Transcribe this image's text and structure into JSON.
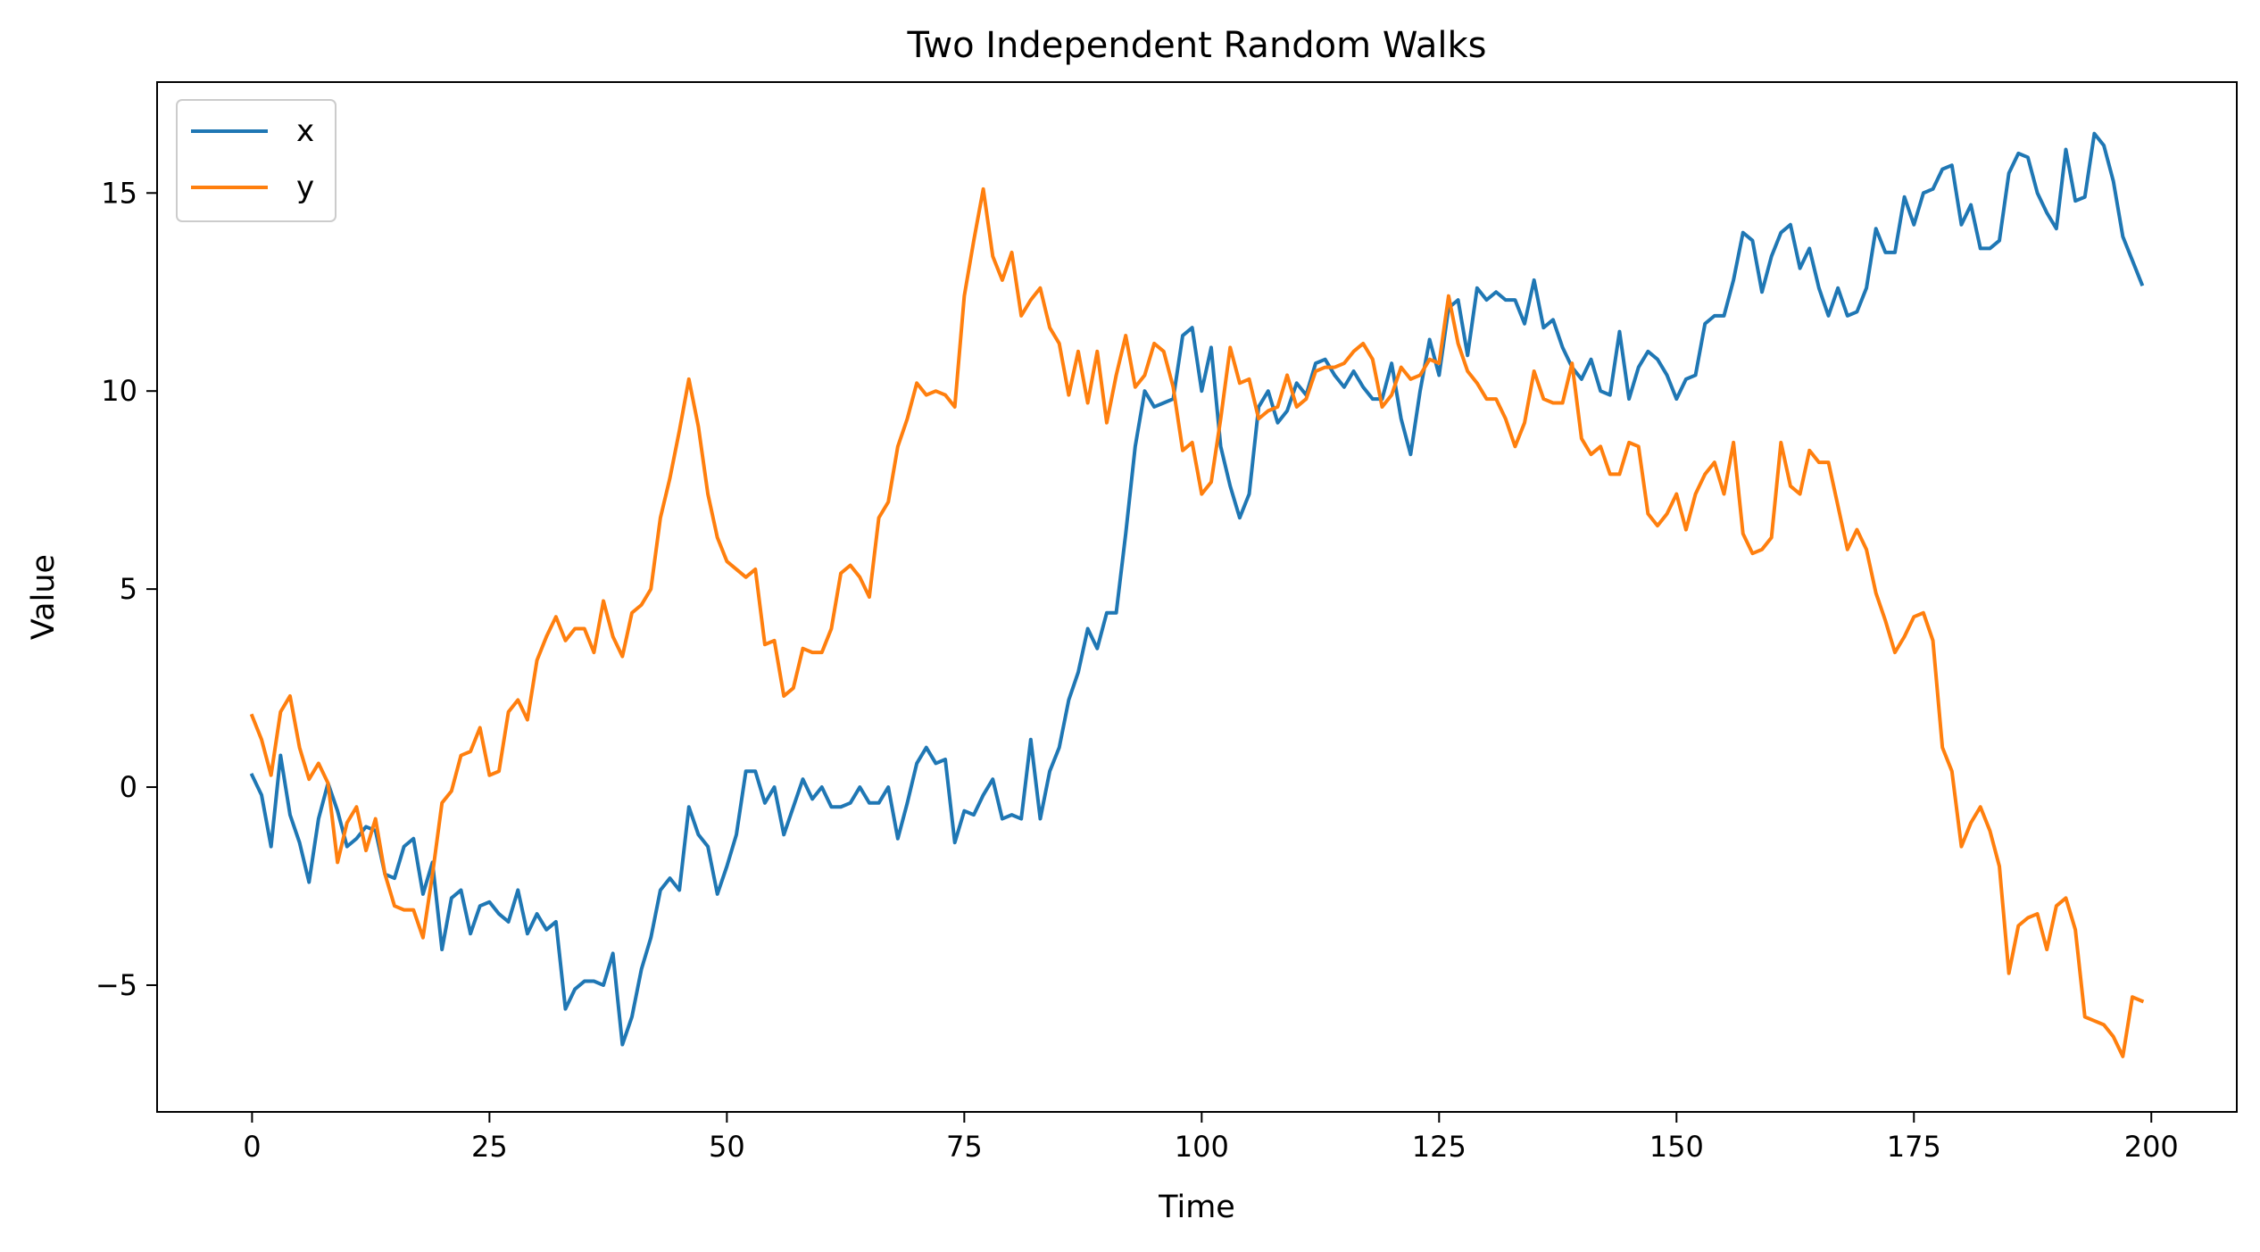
{
  "chart_data": {
    "type": "line",
    "title": "Two Independent Random Walks",
    "xlabel": "Time",
    "ylabel": "Value",
    "xlim": [
      -10,
      209
    ],
    "ylim": [
      -8.2,
      17.8
    ],
    "xticks": [
      0,
      25,
      50,
      75,
      100,
      125,
      150,
      175,
      200
    ],
    "yticks": [
      -5,
      0,
      5,
      10,
      15
    ],
    "ytick_labels": [
      "−5",
      "0",
      "5",
      "10",
      "15"
    ],
    "grid": false,
    "legend": "upper left",
    "series": [
      {
        "name": "x",
        "color": "#1f77b4",
        "values": [
          0.3,
          -0.2,
          -1.5,
          0.8,
          -0.7,
          -1.4,
          -2.4,
          -0.8,
          0.1,
          -0.6,
          -1.5,
          -1.3,
          -1.0,
          -1.1,
          -2.2,
          -2.3,
          -1.5,
          -1.3,
          -2.7,
          -1.9,
          -4.1,
          -2.8,
          -2.6,
          -3.7,
          -3.0,
          -2.9,
          -3.2,
          -3.4,
          -2.6,
          -3.7,
          -3.2,
          -3.6,
          -3.4,
          -5.6,
          -5.1,
          -4.9,
          -4.9,
          -5.0,
          -4.2,
          -6.5,
          -5.8,
          -4.6,
          -3.8,
          -2.6,
          -2.3,
          -2.6,
          -0.5,
          -1.2,
          -1.5,
          -2.7,
          -2.0,
          -1.2,
          0.4,
          0.4,
          -0.4,
          0.0,
          -1.2,
          -0.5,
          0.2,
          -0.3,
          0.0,
          -0.5,
          -0.5,
          -0.4,
          0.0,
          -0.4,
          -0.4,
          0.0,
          -1.3,
          -0.4,
          0.6,
          1.0,
          0.6,
          0.7,
          -1.4,
          -0.6,
          -0.7,
          -0.2,
          0.2,
          -0.8,
          -0.7,
          -0.8,
          1.2,
          -0.8,
          0.4,
          1.0,
          2.2,
          2.9,
          4.0,
          3.5,
          4.4,
          4.4,
          6.4,
          8.6,
          10.0,
          9.6,
          9.7,
          9.8,
          11.4,
          11.6,
          10.0,
          11.1,
          8.6,
          7.6,
          6.8,
          7.4,
          9.6,
          10.0,
          9.2,
          9.5,
          10.2,
          9.9,
          10.7,
          10.8,
          10.4,
          10.1,
          10.5,
          10.1,
          9.8,
          9.8,
          10.7,
          9.3,
          8.4,
          10.0,
          11.3,
          10.4,
          12.1,
          12.3,
          10.9,
          12.6,
          12.3,
          12.5,
          12.3,
          12.3,
          11.7,
          12.8,
          11.6,
          11.8,
          11.1,
          10.6,
          10.3,
          10.8,
          10.0,
          9.9,
          11.5,
          9.8,
          10.6,
          11.0,
          10.8,
          10.4,
          9.8,
          10.3,
          10.4,
          11.7,
          11.9,
          11.9,
          12.8,
          14.0,
          13.8,
          12.5,
          13.4,
          14.0,
          14.2,
          13.1,
          13.6,
          12.6,
          11.9,
          12.6,
          11.9,
          12.0,
          12.6,
          14.1,
          13.5,
          13.5,
          14.9,
          14.2,
          15.0,
          15.1,
          15.6,
          15.7,
          14.2,
          14.7,
          13.6,
          13.6,
          13.8,
          15.5,
          16.0,
          15.9,
          15.0,
          14.5,
          14.1,
          16.1,
          14.8,
          14.9,
          16.5,
          16.2,
          15.3,
          13.9,
          13.3,
          12.7
        ]
      },
      {
        "name": "y",
        "color": "#ff7f0e",
        "values": [
          1.8,
          1.2,
          0.3,
          1.9,
          2.3,
          1.0,
          0.2,
          0.6,
          0.1,
          -1.9,
          -0.9,
          -0.5,
          -1.6,
          -0.8,
          -2.2,
          -3.0,
          -3.1,
          -3.1,
          -3.8,
          -2.2,
          -0.4,
          -0.1,
          0.8,
          0.9,
          1.5,
          0.3,
          0.4,
          1.9,
          2.2,
          1.7,
          3.2,
          3.8,
          4.3,
          3.7,
          4.0,
          4.0,
          3.4,
          4.7,
          3.8,
          3.3,
          4.4,
          4.6,
          5.0,
          6.8,
          7.8,
          9.0,
          10.3,
          9.1,
          7.4,
          6.3,
          5.7,
          5.5,
          5.3,
          5.5,
          3.6,
          3.7,
          2.3,
          2.5,
          3.5,
          3.4,
          3.4,
          4.0,
          5.4,
          5.6,
          5.3,
          4.8,
          6.8,
          7.2,
          8.6,
          9.3,
          10.2,
          9.9,
          10.0,
          9.9,
          9.6,
          12.4,
          13.8,
          15.1,
          13.4,
          12.8,
          13.5,
          11.9,
          12.3,
          12.6,
          11.6,
          11.2,
          9.9,
          11.0,
          9.7,
          11.0,
          9.2,
          10.4,
          11.4,
          10.1,
          10.4,
          11.2,
          11.0,
          10.1,
          8.5,
          8.7,
          7.4,
          7.7,
          9.3,
          11.1,
          10.2,
          10.3,
          9.3,
          9.5,
          9.6,
          10.4,
          9.6,
          9.8,
          10.5,
          10.6,
          10.6,
          10.7,
          11.0,
          11.2,
          10.8,
          9.6,
          9.9,
          10.6,
          10.3,
          10.4,
          10.8,
          10.7,
          12.4,
          11.2,
          10.5,
          10.2,
          9.8,
          9.8,
          9.3,
          8.6,
          9.2,
          10.5,
          9.8,
          9.7,
          9.7,
          10.7,
          8.8,
          8.4,
          8.6,
          7.9,
          7.9,
          8.7,
          8.6,
          6.9,
          6.6,
          6.9,
          7.4,
          6.5,
          7.4,
          7.9,
          8.2,
          7.4,
          8.7,
          6.4,
          5.9,
          6.0,
          6.3,
          8.7,
          7.6,
          7.4,
          8.5,
          8.2,
          8.2,
          7.1,
          6.0,
          6.5,
          6.0,
          4.9,
          4.2,
          3.4,
          3.8,
          4.3,
          4.4,
          3.7,
          1.0,
          0.4,
          -1.5,
          -0.9,
          -0.5,
          -1.1,
          -2.0,
          -4.7,
          -3.5,
          -3.3,
          -3.2,
          -4.1,
          -3.0,
          -2.8,
          -3.6,
          -5.8,
          -5.9,
          -6.0,
          -6.3,
          -6.8,
          -5.3,
          -5.4
        ]
      }
    ]
  }
}
